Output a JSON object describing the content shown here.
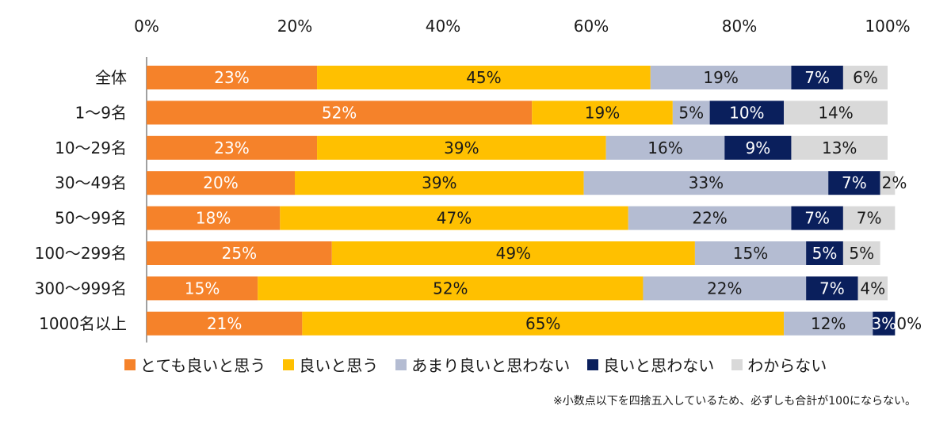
{
  "chart_data": {
    "type": "bar",
    "orientation": "horizontal",
    "stacked": true,
    "categories": [
      "全体",
      "1～9名",
      "10～29名",
      "30～49名",
      "50～99名",
      "100～299名",
      "300～999名",
      "1000名以上"
    ],
    "series": [
      {
        "name": "とても良いと思う",
        "values": [
          23,
          52,
          23,
          20,
          18,
          25,
          15,
          21
        ],
        "color": "#F5822A"
      },
      {
        "name": "良いと思う",
        "values": [
          45,
          19,
          39,
          39,
          47,
          49,
          52,
          65
        ],
        "color": "#FFC000"
      },
      {
        "name": "あまり良いと思わない",
        "values": [
          19,
          5,
          16,
          33,
          22,
          15,
          22,
          12
        ],
        "color": "#B4BCD2"
      },
      {
        "name": "良いと思わない",
        "values": [
          7,
          10,
          9,
          7,
          7,
          5,
          7,
          3
        ],
        "color": "#0A1F5C"
      },
      {
        "name": "わからない",
        "values": [
          6,
          14,
          13,
          2,
          7,
          5,
          4,
          0
        ],
        "color": "#D9D9D9"
      }
    ],
    "xlim": [
      0,
      100
    ],
    "x_tick_labels": [
      "0%",
      "20%",
      "40%",
      "60%",
      "80%",
      "100%"
    ],
    "x_ticks": [
      0,
      20,
      40,
      60,
      80,
      100
    ],
    "axis_position": "top",
    "grid": false,
    "legend_position": "bottom",
    "footnote": "※小数点以下を四捨五入しているため、必ずしも合計が100にならない。"
  }
}
